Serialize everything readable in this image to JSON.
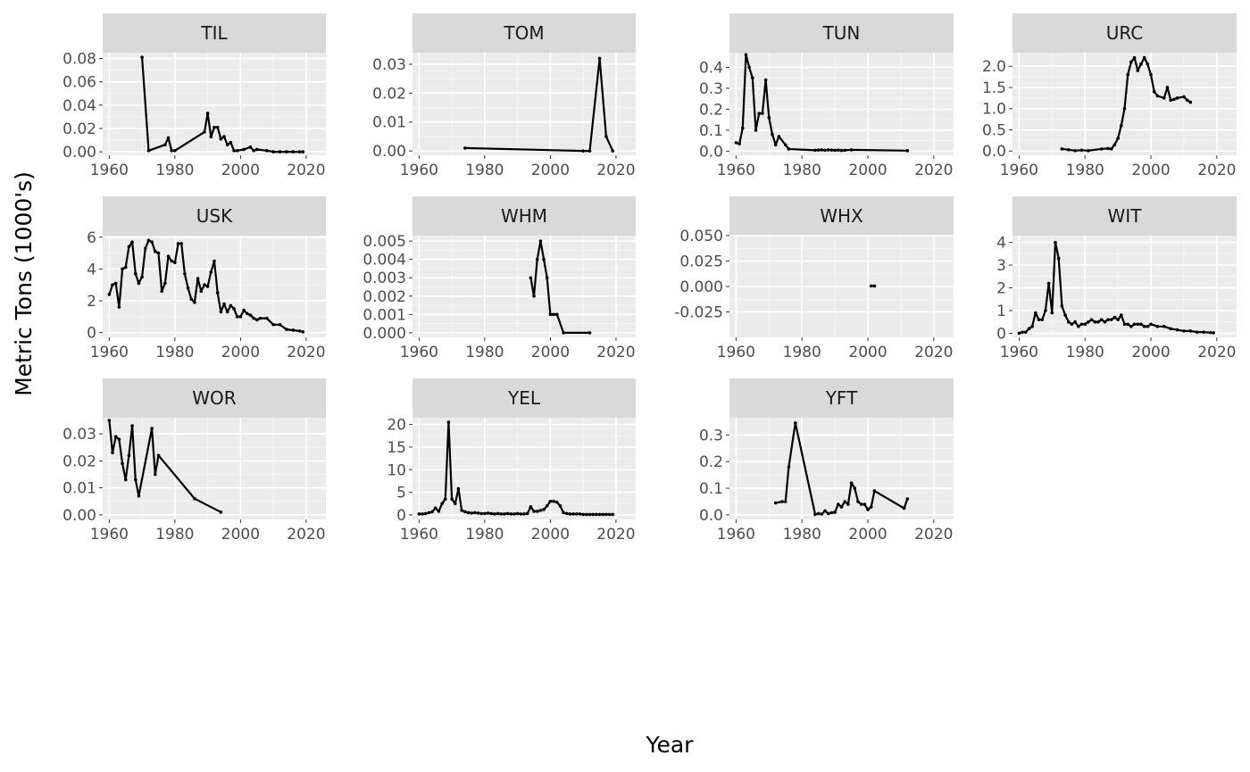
{
  "figure": {
    "xlabel": "Year",
    "ylabel": "Metric Tons (1000's)"
  },
  "colors": {
    "panel_bg": "#ebebeb",
    "strip_bg": "#d9d9d9",
    "grid_major": "#ffffff",
    "line": "#000000",
    "tick_text": "#4d4d4d"
  },
  "chart_data": {
    "type": "line",
    "facet": "wrap",
    "ncol": 4,
    "xlabel": "Year",
    "ylabel": "Metric Tons (1000's)",
    "xlim": [
      1958,
      2026
    ],
    "x_ticks": [
      1960,
      1980,
      2000,
      2020
    ],
    "x_tick_labels": [
      "1960",
      "1980",
      "2000",
      "2020"
    ],
    "grid": true,
    "panels": [
      {
        "name": "TIL",
        "ylim": [
          -0.003,
          0.085
        ],
        "y_ticks": [
          0,
          0.02,
          0.04,
          0.06,
          0.08
        ],
        "y_tick_labels": [
          "0.00",
          "0.02",
          "0.04",
          "0.06",
          "0.08"
        ],
        "x": [
          1970,
          1972,
          1977,
          1978,
          1979,
          1980,
          1989,
          1990,
          1991,
          1992,
          1993,
          1994,
          1995,
          1996,
          1997,
          1998,
          1999,
          2001,
          2003,
          2004,
          2005,
          2008,
          2010,
          2012,
          2014,
          2016,
          2018,
          2019
        ],
        "y": [
          0.081,
          0.001,
          0.006,
          0.012,
          0.001,
          0.001,
          0.017,
          0.033,
          0.013,
          0.021,
          0.021,
          0.011,
          0.013,
          0.006,
          0.008,
          0.001,
          0.001,
          0.002,
          0.004,
          0.001,
          0.002,
          0.001,
          0.0,
          0.0,
          0.0,
          0.0,
          0.0,
          0.0
        ]
      },
      {
        "name": "TOM",
        "ylim": [
          -0.0015,
          0.034
        ],
        "y_ticks": [
          0,
          0.01,
          0.02,
          0.03
        ],
        "y_tick_labels": [
          "0.00",
          "0.01",
          "0.02",
          "0.03"
        ],
        "x": [
          1974,
          2010,
          2012,
          2015,
          2017,
          2019
        ],
        "y": [
          0.001,
          0.0,
          0.0,
          0.032,
          0.005,
          0.0
        ]
      },
      {
        "name": "TUN",
        "ylim": [
          -0.02,
          0.47
        ],
        "y_ticks": [
          0,
          0.1,
          0.2,
          0.3,
          0.4
        ],
        "y_tick_labels": [
          "0.0",
          "0.1",
          "0.2",
          "0.3",
          "0.4"
        ],
        "x": [
          1960,
          1961,
          1962,
          1963,
          1964,
          1965,
          1966,
          1967,
          1968,
          1969,
          1970,
          1971,
          1972,
          1973,
          1975,
          1976,
          1984,
          1985,
          1986,
          1987,
          1988,
          1989,
          1990,
          1991,
          1992,
          1993,
          1995,
          2012
        ],
        "y": [
          0.04,
          0.035,
          0.11,
          0.46,
          0.4,
          0.35,
          0.1,
          0.18,
          0.18,
          0.34,
          0.16,
          0.08,
          0.03,
          0.07,
          0.03,
          0.01,
          0.004,
          0.005,
          0.006,
          0.004,
          0.006,
          0.005,
          0.004,
          0.005,
          0.003,
          0.004,
          0.006,
          0.002
        ]
      },
      {
        "name": "URC",
        "ylim": [
          -0.1,
          2.32
        ],
        "y_ticks": [
          0,
          0.5,
          1.0,
          1.5,
          2.0
        ],
        "y_tick_labels": [
          "0.0",
          "0.5",
          "1.0",
          "1.5",
          "2.0"
        ],
        "x": [
          1973,
          1975,
          1977,
          1979,
          1981,
          1985,
          1987,
          1988,
          1989,
          1990,
          1991,
          1992,
          1993,
          1994,
          1995,
          1996,
          1997,
          1998,
          1999,
          2000,
          2001,
          2002,
          2004,
          2005,
          2006,
          2007,
          2008,
          2010,
          2011,
          2012
        ],
        "y": [
          0.05,
          0.03,
          0.01,
          0.02,
          0.01,
          0.05,
          0.06,
          0.05,
          0.15,
          0.3,
          0.6,
          1.0,
          1.8,
          2.1,
          2.2,
          1.9,
          2.05,
          2.2,
          2.05,
          1.8,
          1.4,
          1.3,
          1.25,
          1.5,
          1.2,
          1.22,
          1.25,
          1.28,
          1.2,
          1.15
        ]
      },
      {
        "name": "USK",
        "ylim": [
          -0.3,
          6.1
        ],
        "y_ticks": [
          0,
          2,
          4,
          6
        ],
        "y_tick_labels": [
          "0",
          "2",
          "4",
          "6"
        ],
        "x": [
          1960,
          1961,
          1962,
          1963,
          1964,
          1965,
          1966,
          1967,
          1968,
          1969,
          1970,
          1971,
          1972,
          1973,
          1974,
          1975,
          1976,
          1977,
          1978,
          1979,
          1980,
          1981,
          1982,
          1983,
          1984,
          1985,
          1986,
          1987,
          1988,
          1989,
          1990,
          1991,
          1992,
          1993,
          1994,
          1995,
          1996,
          1997,
          1998,
          1999,
          2000,
          2001,
          2002,
          2003,
          2004,
          2005,
          2006,
          2008,
          2010,
          2012,
          2014,
          2016,
          2018,
          2019
        ],
        "y": [
          2.4,
          3.0,
          3.1,
          1.6,
          4.0,
          4.1,
          5.4,
          5.7,
          3.7,
          3.1,
          3.5,
          5.3,
          5.8,
          5.7,
          5.1,
          5.0,
          2.6,
          3.1,
          4.8,
          4.5,
          4.4,
          5.6,
          5.6,
          3.7,
          2.8,
          2.1,
          1.9,
          3.4,
          2.6,
          3.0,
          2.9,
          3.8,
          4.5,
          2.5,
          1.3,
          1.8,
          1.3,
          1.7,
          1.5,
          1.0,
          1.0,
          1.4,
          1.2,
          1.1,
          0.9,
          0.8,
          0.9,
          0.9,
          0.5,
          0.5,
          0.2,
          0.15,
          0.1,
          0.05
        ]
      },
      {
        "name": "WHM",
        "ylim": [
          -0.00025,
          0.0053
        ],
        "y_ticks": [
          0,
          0.001,
          0.002,
          0.003,
          0.004,
          0.005
        ],
        "y_tick_labels": [
          "0.000",
          "0.001",
          "0.002",
          "0.003",
          "0.004",
          "0.005"
        ],
        "x": [
          1994,
          1995,
          1996,
          1997,
          1998,
          1999,
          2000,
          2001,
          2002,
          2004,
          2012
        ],
        "y": [
          0.003,
          0.002,
          0.004,
          0.005,
          0.004,
          0.003,
          0.001,
          0.001,
          0.001,
          0.0,
          0.0
        ]
      },
      {
        "name": "WHX",
        "ylim": [
          -0.05,
          0.05
        ],
        "y_ticks": [
          -0.025,
          0,
          0.025,
          0.05
        ],
        "y_tick_labels": [
          "-0.025",
          "0.000",
          "0.025",
          "0.050"
        ],
        "x": [
          2001,
          2002
        ],
        "y": [
          0.0005,
          0.0005
        ]
      },
      {
        "name": "WIT",
        "ylim": [
          -0.18,
          4.3
        ],
        "y_ticks": [
          0,
          1,
          2,
          3,
          4
        ],
        "y_tick_labels": [
          "0",
          "1",
          "2",
          "3",
          "4"
        ],
        "x": [
          1960,
          1961,
          1962,
          1963,
          1964,
          1965,
          1966,
          1967,
          1968,
          1969,
          1970,
          1971,
          1972,
          1973,
          1974,
          1975,
          1976,
          1977,
          1978,
          1979,
          1980,
          1981,
          1982,
          1983,
          1984,
          1985,
          1986,
          1987,
          1988,
          1989,
          1990,
          1991,
          1992,
          1993,
          1994,
          1995,
          1996,
          1997,
          1998,
          1999,
          2000,
          2002,
          2004,
          2006,
          2008,
          2010,
          2012,
          2014,
          2016,
          2018,
          2019
        ],
        "y": [
          0.0,
          0.05,
          0.05,
          0.2,
          0.3,
          0.9,
          0.6,
          0.6,
          1.0,
          2.2,
          0.9,
          4.0,
          3.3,
          1.2,
          0.8,
          0.5,
          0.4,
          0.5,
          0.3,
          0.4,
          0.4,
          0.5,
          0.6,
          0.5,
          0.5,
          0.6,
          0.5,
          0.6,
          0.6,
          0.7,
          0.6,
          0.8,
          0.4,
          0.4,
          0.3,
          0.4,
          0.4,
          0.4,
          0.3,
          0.3,
          0.4,
          0.3,
          0.3,
          0.2,
          0.15,
          0.1,
          0.1,
          0.05,
          0.05,
          0.03,
          0.02
        ]
      },
      {
        "name": "WOR",
        "ylim": [
          -0.0017,
          0.036
        ],
        "y_ticks": [
          0,
          0.01,
          0.02,
          0.03
        ],
        "y_tick_labels": [
          "0.00",
          "0.01",
          "0.02",
          "0.03"
        ],
        "x": [
          1960,
          1961,
          1962,
          1963,
          1964,
          1965,
          1966,
          1967,
          1968,
          1969,
          1973,
          1974,
          1975,
          1986,
          1994
        ],
        "y": [
          0.035,
          0.023,
          0.029,
          0.028,
          0.019,
          0.013,
          0.022,
          0.033,
          0.013,
          0.007,
          0.032,
          0.015,
          0.022,
          0.006,
          0.001
        ]
      },
      {
        "name": "YEL",
        "ylim": [
          -1.0,
          21.5
        ],
        "y_ticks": [
          0,
          5,
          10,
          15,
          20
        ],
        "y_tick_labels": [
          "0",
          "5",
          "10",
          "15",
          "20"
        ],
        "x": [
          1960,
          1961,
          1962,
          1963,
          1964,
          1965,
          1966,
          1967,
          1968,
          1969,
          1970,
          1971,
          1972,
          1973,
          1974,
          1975,
          1976,
          1977,
          1978,
          1979,
          1980,
          1981,
          1982,
          1983,
          1984,
          1985,
          1986,
          1987,
          1988,
          1989,
          1990,
          1991,
          1992,
          1993,
          1994,
          1995,
          1996,
          1997,
          1998,
          1999,
          2000,
          2001,
          2002,
          2003,
          2004,
          2005,
          2006,
          2007,
          2008,
          2009,
          2010,
          2011,
          2012,
          2013,
          2014,
          2015,
          2016,
          2017,
          2018,
          2019
        ],
        "y": [
          0.2,
          0.2,
          0.3,
          0.5,
          0.7,
          1.5,
          0.8,
          2.5,
          3.5,
          20.5,
          3.5,
          2.5,
          5.8,
          1.0,
          0.7,
          0.5,
          0.4,
          0.5,
          0.4,
          0.3,
          0.3,
          0.4,
          0.3,
          0.2,
          0.3,
          0.2,
          0.2,
          0.3,
          0.2,
          0.2,
          0.3,
          0.2,
          0.2,
          0.3,
          1.8,
          0.8,
          0.8,
          1.0,
          1.2,
          2.0,
          3.0,
          3.0,
          2.8,
          2.0,
          0.5,
          0.3,
          0.2,
          0.2,
          0.2,
          0.2,
          0.1,
          0.1,
          0.1,
          0.1,
          0.1,
          0.1,
          0.1,
          0.1,
          0.1,
          0.1
        ]
      },
      {
        "name": "YFT",
        "ylim": [
          -0.017,
          0.365
        ],
        "y_ticks": [
          0,
          0.1,
          0.2,
          0.3
        ],
        "y_tick_labels": [
          "0.0",
          "0.1",
          "0.2",
          "0.3"
        ],
        "x": [
          1972,
          1974,
          1975,
          1976,
          1978,
          1984,
          1985,
          1986,
          1987,
          1988,
          1989,
          1990,
          1991,
          1992,
          1993,
          1994,
          1995,
          1996,
          1997,
          1998,
          1999,
          2000,
          2001,
          2002,
          2011,
          2012
        ],
        "y": [
          0.045,
          0.05,
          0.05,
          0.18,
          0.345,
          0.002,
          0.005,
          0.003,
          0.015,
          0.005,
          0.008,
          0.01,
          0.04,
          0.03,
          0.05,
          0.04,
          0.12,
          0.1,
          0.05,
          0.04,
          0.04,
          0.02,
          0.03,
          0.09,
          0.025,
          0.06
        ]
      }
    ]
  }
}
